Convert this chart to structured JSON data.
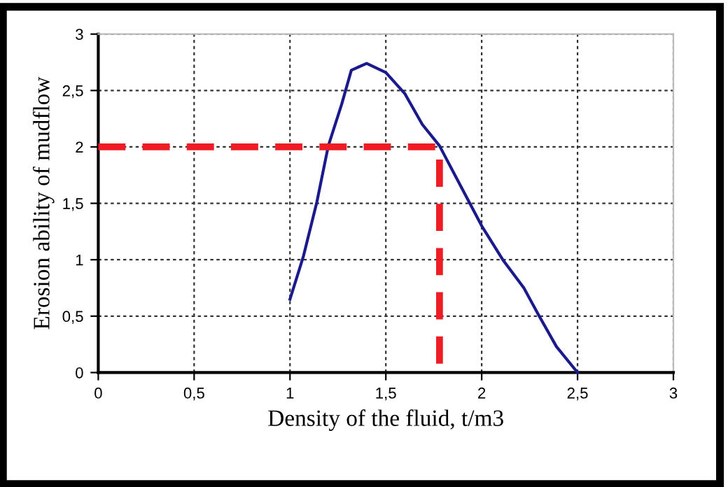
{
  "chart_data": {
    "type": "line",
    "xlabel": "Density of the fluid, t/m3",
    "ylabel": "Erosion ability of mudflow",
    "xlim": [
      0,
      3
    ],
    "ylim": [
      0,
      3
    ],
    "xticks": [
      0,
      {
        "value": 0.5,
        "label": "0,5"
      },
      1,
      {
        "value": 1.5,
        "label": "1,5"
      },
      2,
      {
        "value": 2.5,
        "label": "2,5"
      },
      3
    ],
    "yticks": [
      0,
      {
        "value": 0.5,
        "label": "0,5"
      },
      1,
      {
        "value": 1.5,
        "label": "1,5"
      },
      2,
      {
        "value": 2.5,
        "label": "2,5"
      },
      3
    ],
    "grid": true,
    "legend": false,
    "marker": "none",
    "series": [
      {
        "color": "#1a1a8c",
        "line_style": "solid",
        "x": [
          1.0,
          1.07,
          1.14,
          1.2,
          1.27,
          1.32,
          1.4,
          1.5,
          1.6,
          1.69,
          1.78,
          1.91,
          2.0,
          2.11,
          2.22,
          2.3,
          2.39,
          2.5
        ],
        "values": [
          0.65,
          1.03,
          1.51,
          2.01,
          2.38,
          2.68,
          2.74,
          2.66,
          2.47,
          2.2,
          2.01,
          1.59,
          1.3,
          1.0,
          0.75,
          0.5,
          0.23,
          0
        ]
      },
      {
        "color": "#ee1c25",
        "line_style": "dashed",
        "x": [
          0,
          1.78,
          1.78
        ],
        "values": [
          2,
          2,
          0
        ]
      }
    ]
  }
}
